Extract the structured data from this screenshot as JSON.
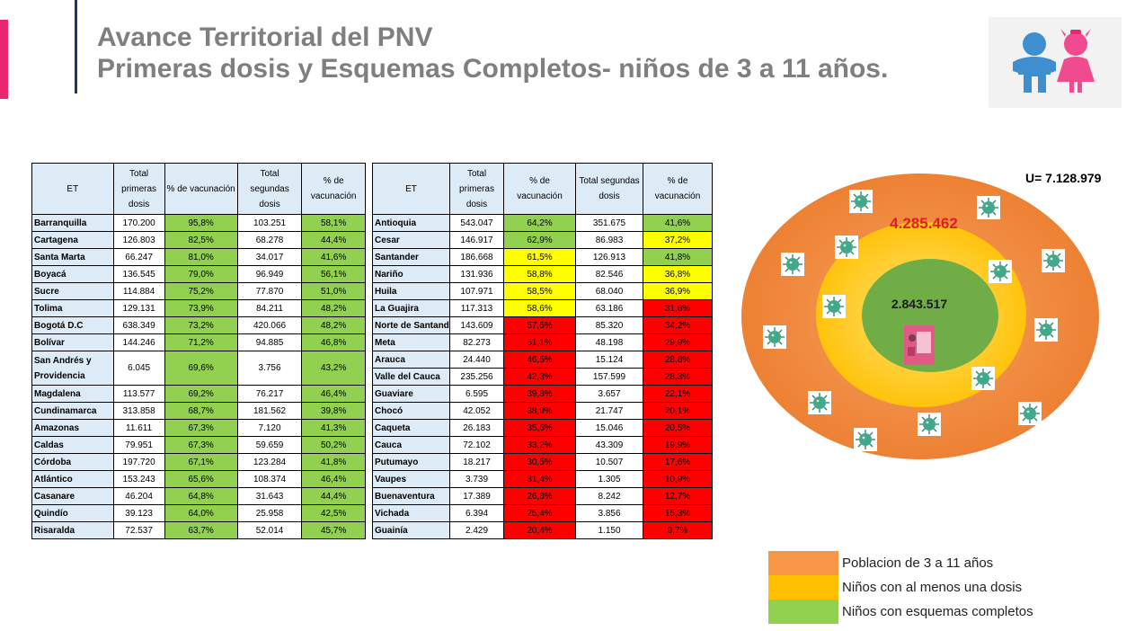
{
  "header": {
    "title_line1": "Avance Territorial del PNV",
    "title_line2": "Primeras dosis y Esquemas Completos- niños de 3 a 11 años."
  },
  "colors": {
    "accent_pink": "#e9266f",
    "header_navy": "#1f3763",
    "green": "#92d050",
    "yellow": "#ffff00",
    "red": "#ff0000",
    "outer_orange": "#f08a3c",
    "middle_yellow": "#ffc000",
    "inner_green": "#70ad47"
  },
  "table_headers": [
    "ET",
    "Total primeras dosis",
    "% de vacunación",
    "Total segundas dosis",
    "% de vacunación"
  ],
  "table_left": [
    {
      "et": "Barranquilla",
      "p1": "170.200",
      "v1": "95,8%",
      "c1": "g",
      "p2": "103.251",
      "v2": "58,1%",
      "c2": "g"
    },
    {
      "et": "Cartagena",
      "p1": "126.803",
      "v1": "82,5%",
      "c1": "g",
      "p2": "68.278",
      "v2": "44,4%",
      "c2": "g"
    },
    {
      "et": "Santa Marta",
      "p1": "66.247",
      "v1": "81,0%",
      "c1": "g",
      "p2": "34.017",
      "v2": "41,6%",
      "c2": "g"
    },
    {
      "et": "Boyacá",
      "p1": "136.545",
      "v1": "79,0%",
      "c1": "g",
      "p2": "96.949",
      "v2": "56,1%",
      "c2": "g"
    },
    {
      "et": "Sucre",
      "p1": "114.884",
      "v1": "75,2%",
      "c1": "g",
      "p2": "77.870",
      "v2": "51,0%",
      "c2": "g"
    },
    {
      "et": "Tolima",
      "p1": "129.131",
      "v1": "73,9%",
      "c1": "g",
      "p2": "84.211",
      "v2": "48,2%",
      "c2": "g"
    },
    {
      "et": "Bogotá D.C",
      "p1": "638.349",
      "v1": "73,2%",
      "c1": "g",
      "p2": "420.066",
      "v2": "48,2%",
      "c2": "g"
    },
    {
      "et": "Bolívar",
      "p1": "144.246",
      "v1": "71,2%",
      "c1": "g",
      "p2": "94.885",
      "v2": "46,8%",
      "c2": "g"
    },
    {
      "et": "San Andrés y Providencia",
      "p1": "6.045",
      "v1": "69,6%",
      "c1": "g",
      "p2": "3.756",
      "v2": "43,2%",
      "c2": "g"
    },
    {
      "et": "Magdalena",
      "p1": "113.577",
      "v1": "69,2%",
      "c1": "g",
      "p2": "76.217",
      "v2": "46,4%",
      "c2": "g"
    },
    {
      "et": "Cundinamarca",
      "p1": "313.858",
      "v1": "68,7%",
      "c1": "g",
      "p2": "181.562",
      "v2": "39,8%",
      "c2": "g"
    },
    {
      "et": "Amazonas",
      "p1": "11.611",
      "v1": "67,3%",
      "c1": "g",
      "p2": "7.120",
      "v2": "41,3%",
      "c2": "g"
    },
    {
      "et": "Caldas",
      "p1": "79.951",
      "v1": "67,3%",
      "c1": "g",
      "p2": "59.659",
      "v2": "50,2%",
      "c2": "g"
    },
    {
      "et": "Córdoba",
      "p1": "197.720",
      "v1": "67,1%",
      "c1": "g",
      "p2": "123.284",
      "v2": "41,8%",
      "c2": "g"
    },
    {
      "et": "Atlántico",
      "p1": "153.243",
      "v1": "65,6%",
      "c1": "g",
      "p2": "108.374",
      "v2": "46,4%",
      "c2": "g"
    },
    {
      "et": "Casanare",
      "p1": "46.204",
      "v1": "64,8%",
      "c1": "g",
      "p2": "31.643",
      "v2": "44,4%",
      "c2": "g"
    },
    {
      "et": "Quindío",
      "p1": "39.123",
      "v1": "64,0%",
      "c1": "g",
      "p2": "25.958",
      "v2": "42,5%",
      "c2": "g"
    },
    {
      "et": "Risaralda",
      "p1": "72.537",
      "v1": "63,7%",
      "c1": "g",
      "p2": "52.014",
      "v2": "45,7%",
      "c2": "g"
    }
  ],
  "table_right": [
    {
      "et": "Antioquia",
      "p1": "543.047",
      "v1": "64,2%",
      "c1": "g",
      "p2": "351.675",
      "v2": "41,6%",
      "c2": "g"
    },
    {
      "et": "Cesar",
      "p1": "146.917",
      "v1": "62,9%",
      "c1": "g",
      "p2": "86.983",
      "v2": "37,2%",
      "c2": "y"
    },
    {
      "et": "Santander",
      "p1": "186.668",
      "v1": "61,5%",
      "c1": "y",
      "p2": "126.913",
      "v2": "41,8%",
      "c2": "g"
    },
    {
      "et": "Nariño",
      "p1": "131.936",
      "v1": "58,8%",
      "c1": "y",
      "p2": "82.546",
      "v2": "36,8%",
      "c2": "y"
    },
    {
      "et": "Huila",
      "p1": "107.971",
      "v1": "58,5%",
      "c1": "y",
      "p2": "68.040",
      "v2": "36,9%",
      "c2": "y"
    },
    {
      "et": "La Guajira",
      "p1": "117.313",
      "v1": "58,6%",
      "c1": "y",
      "p2": "63.186",
      "v2": "31,6%",
      "c2": "r"
    },
    {
      "et": "Norte de Santander",
      "p1": "143.609",
      "v1": "57,5%",
      "c1": "r",
      "p2": "85.320",
      "v2": "34,2%",
      "c2": "r"
    },
    {
      "et": "Meta",
      "p1": "82.273",
      "v1": "51,1%",
      "c1": "r",
      "p2": "48.198",
      "v2": "29,9%",
      "c2": "r"
    },
    {
      "et": "Arauca",
      "p1": "24.440",
      "v1": "46,5%",
      "c1": "r",
      "p2": "15.124",
      "v2": "28,8%",
      "c2": "r"
    },
    {
      "et": "Valle del Cauca",
      "p1": "235.256",
      "v1": "42,3%",
      "c1": "r",
      "p2": "157.599",
      "v2": "28,3%",
      "c2": "r"
    },
    {
      "et": "Guaviare",
      "p1": "6.595",
      "v1": "39,8%",
      "c1": "r",
      "p2": "3.657",
      "v2": "22,1%",
      "c2": "r"
    },
    {
      "et": "Chocó",
      "p1": "42.052",
      "v1": "38,9%",
      "c1": "r",
      "p2": "21.747",
      "v2": "20,1%",
      "c2": "r"
    },
    {
      "et": "Caqueta",
      "p1": "26.183",
      "v1": "35,6%",
      "c1": "r",
      "p2": "15.046",
      "v2": "20,5%",
      "c2": "r"
    },
    {
      "et": "Cauca",
      "p1": "72.102",
      "v1": "33,2%",
      "c1": "r",
      "p2": "43.309",
      "v2": "19,9%",
      "c2": "r"
    },
    {
      "et": "Putumayo",
      "p1": "18.217",
      "v1": "30,5%",
      "c1": "r",
      "p2": "10.507",
      "v2": "17,6%",
      "c2": "r"
    },
    {
      "et": "Vaupes",
      "p1": "3.739",
      "v1": "31,4%",
      "c1": "r",
      "p2": "1.305",
      "v2": "10,9%",
      "c2": "r"
    },
    {
      "et": "Buenaventura",
      "p1": "17.389",
      "v1": "26,8%",
      "c1": "r",
      "p2": "8.242",
      "v2": "12,7%",
      "c2": "r"
    },
    {
      "et": "Vichada",
      "p1": "6.394",
      "v1": "25,4%",
      "c1": "r",
      "p2": "3.856",
      "v2": "15,3%",
      "c2": "r"
    },
    {
      "et": "Guainía",
      "p1": "2.429",
      "v1": "20,4%",
      "c1": "r",
      "p2": "1.150",
      "v2": "9,7%",
      "c2": "r"
    }
  ],
  "diagram": {
    "universe_label": "U= 7.128.979",
    "middle_value": "4.285.462",
    "inner_value": "2.843.517"
  },
  "legend": [
    {
      "label": "Poblacion de 3 a 11 años",
      "color": "#f79646"
    },
    {
      "label": "Niños con al menos una dosis",
      "color": "#ffc000"
    },
    {
      "label": "Niños con esquemas completos",
      "color": "#92d050"
    }
  ],
  "logo": {
    "icon": "children-icon"
  }
}
